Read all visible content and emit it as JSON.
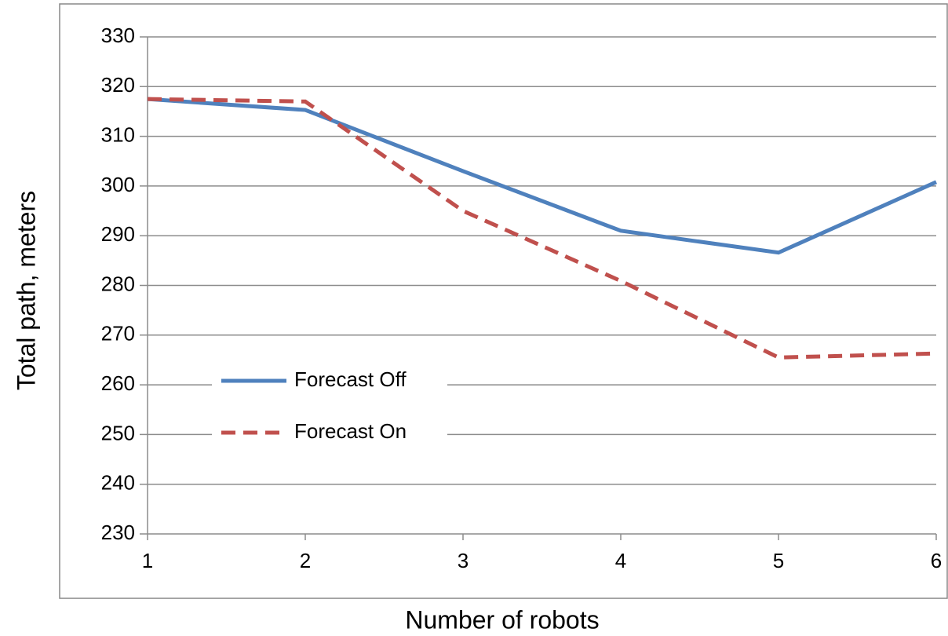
{
  "chart_data": {
    "type": "line",
    "x": [
      1,
      2,
      3,
      4,
      5,
      6
    ],
    "xlim": [
      1,
      6
    ],
    "xticks": [
      1,
      2,
      3,
      4,
      5,
      6
    ],
    "ylim": [
      230,
      330
    ],
    "yticks": [
      230,
      240,
      250,
      260,
      270,
      280,
      290,
      300,
      310,
      320,
      330
    ],
    "x_label": "Number of robots",
    "y_label": "Total path, meters",
    "grid": true,
    "legend": "lower left",
    "series": [
      {
        "name": "Forecast Off",
        "color": "#4f81bd",
        "style": "solid",
        "values": [
          317.5,
          315.3,
          303,
          291,
          286.6,
          300.8
        ]
      },
      {
        "name": "Forecast On",
        "color": "#c0504d",
        "style": "dashed",
        "values": [
          317.5,
          317,
          295,
          280.9,
          265.5,
          266.3
        ]
      }
    ]
  }
}
